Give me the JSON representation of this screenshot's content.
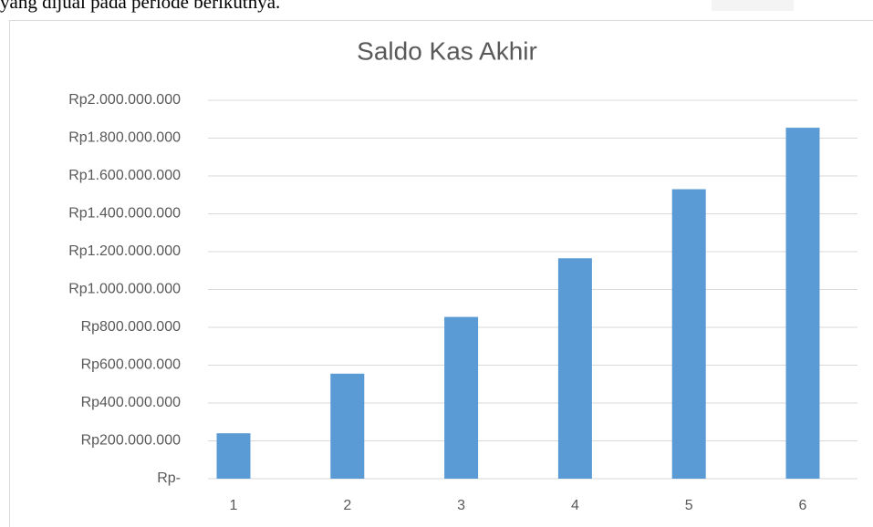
{
  "header_text": "yang dijual pada periode berikutnya.",
  "chart_data": {
    "type": "bar",
    "title": "Saldo Kas Akhir",
    "categories": [
      "1",
      "2",
      "3",
      "4",
      "5",
      "6"
    ],
    "values": [
      240000000,
      555000000,
      855000000,
      1165000000,
      1530000000,
      1855000000
    ],
    "color": "#5b9bd5",
    "ylim": [
      0,
      2000000000
    ],
    "yticks": [
      {
        "value": 0,
        "label": "Rp-"
      },
      {
        "value": 200000000,
        "label": "Rp200.000.000"
      },
      {
        "value": 400000000,
        "label": "Rp400.000.000"
      },
      {
        "value": 600000000,
        "label": "Rp600.000.000"
      },
      {
        "value": 800000000,
        "label": "Rp800.000.000"
      },
      {
        "value": 1000000000,
        "label": "Rp1.000.000.000"
      },
      {
        "value": 1200000000,
        "label": "Rp1.200.000.000"
      },
      {
        "value": 1400000000,
        "label": "Rp1.400.000.000"
      },
      {
        "value": 1600000000,
        "label": "Rp1.600.000.000"
      },
      {
        "value": 1800000000,
        "label": "Rp1.800.000.000"
      },
      {
        "value": 2000000000,
        "label": "Rp2.000.000.000"
      }
    ],
    "grid": true
  }
}
